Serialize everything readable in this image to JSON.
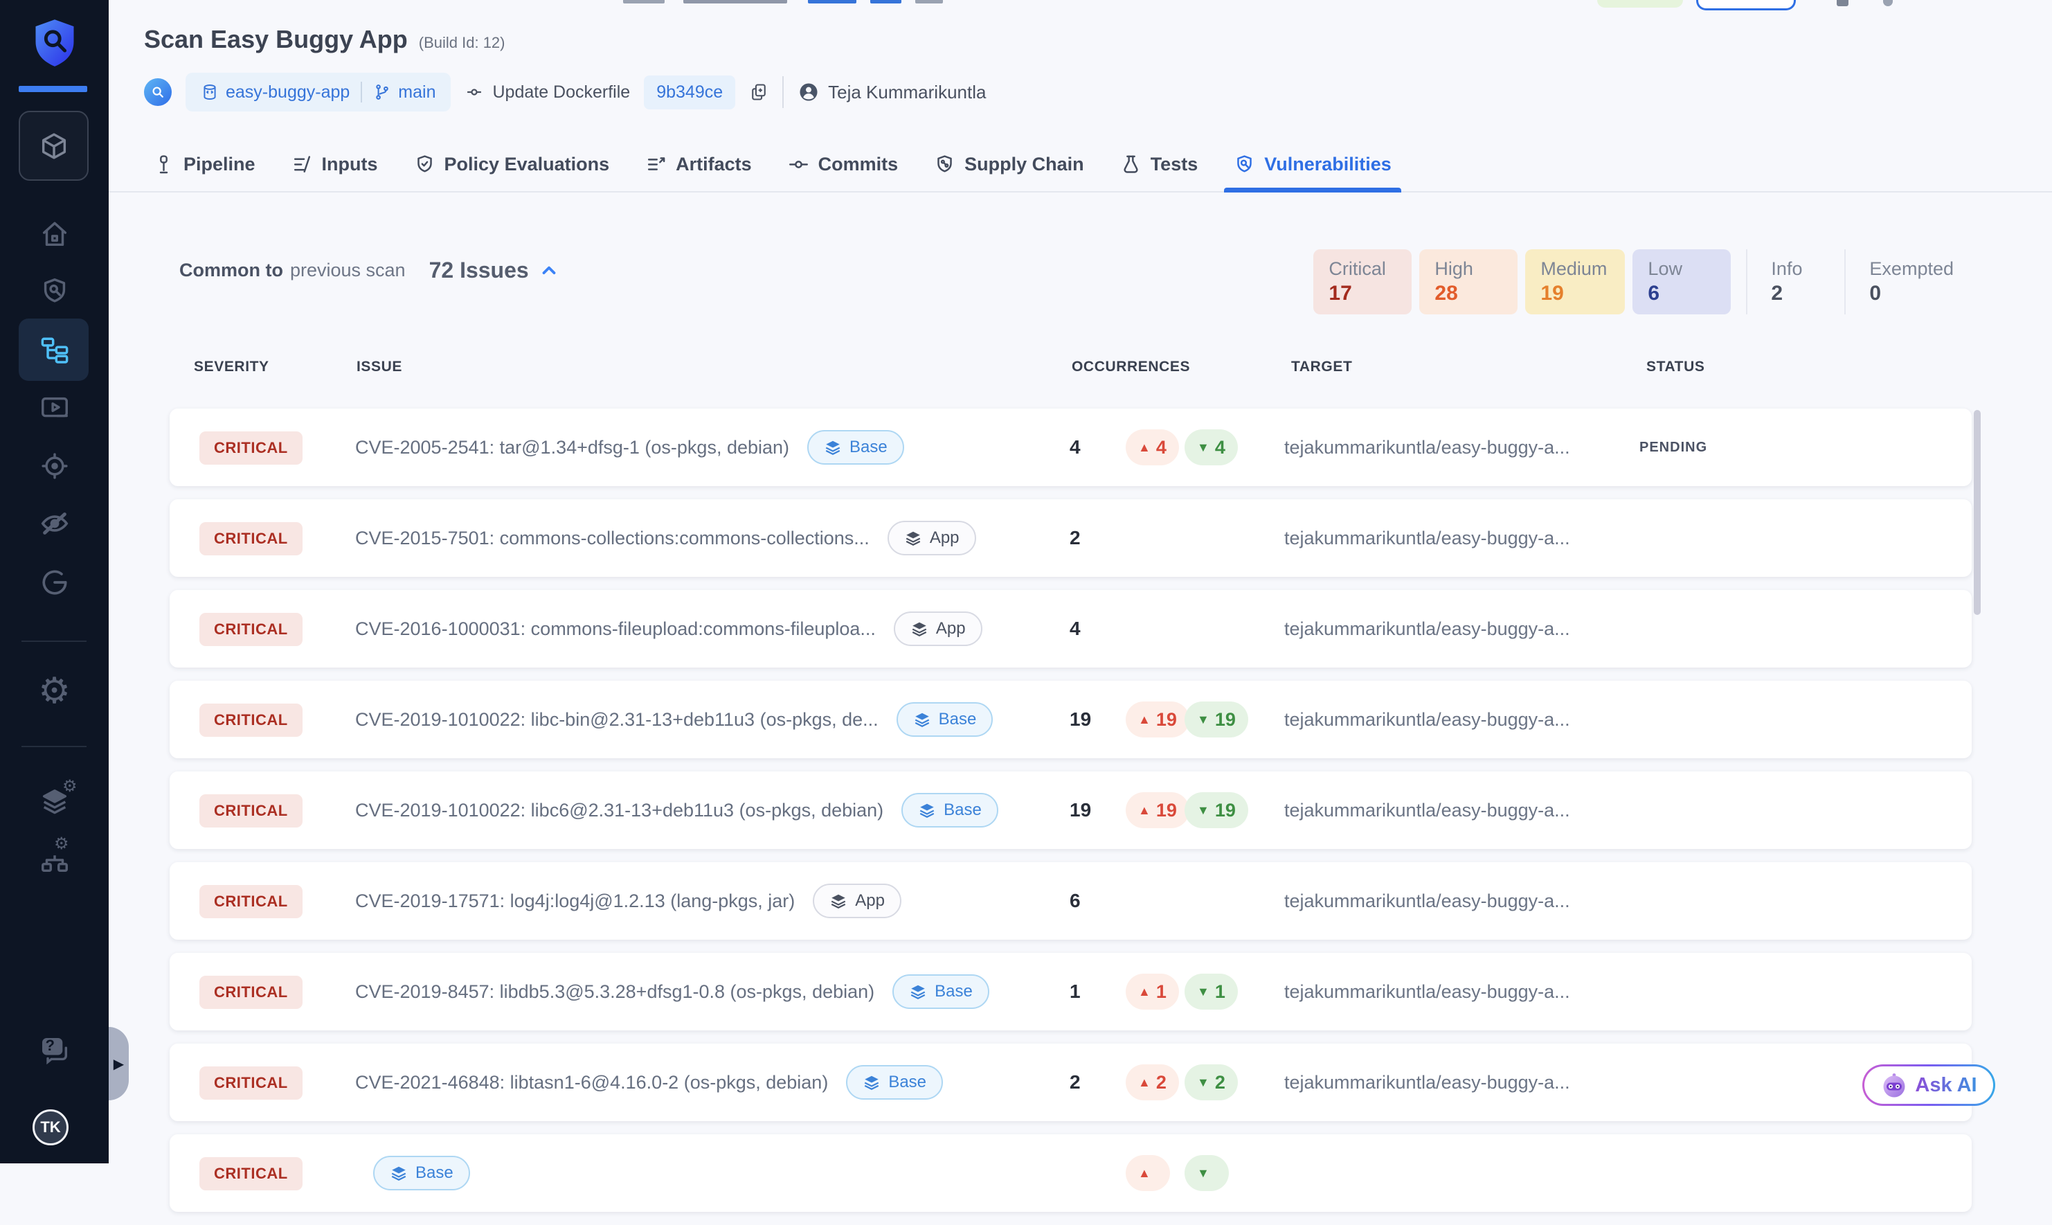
{
  "header": {
    "title": "Scan Easy Buggy App",
    "build_id": "(Build Id: 12)",
    "repo_name": "easy-buggy-app",
    "branch_name": "main",
    "commit_message": "Update Dockerfile",
    "commit_sha": "9b349ce",
    "author_name": "Teja Kummarikuntla"
  },
  "tabs": [
    {
      "label": "Pipeline",
      "icon": "pipeline-icon",
      "active": false
    },
    {
      "label": "Inputs",
      "icon": "inputs-icon",
      "active": false
    },
    {
      "label": "Policy Evaluations",
      "icon": "policy-evaluations-icon",
      "active": false
    },
    {
      "label": "Artifacts",
      "icon": "artifacts-icon",
      "active": false
    },
    {
      "label": "Commits",
      "icon": "commits-icon",
      "active": false
    },
    {
      "label": "Supply Chain",
      "icon": "supply-chain-icon",
      "active": false
    },
    {
      "label": "Tests",
      "icon": "tests-icon",
      "active": false
    },
    {
      "label": "Vulnerabilities",
      "icon": "vulnerabilities-icon",
      "active": true
    }
  ],
  "summary": {
    "common_label": "Common to",
    "scan_label": "previous scan",
    "issues_count": "72 Issues"
  },
  "severity_filters": [
    {
      "label": "Critical",
      "count": "17",
      "bg": "#f6e4e1",
      "count_color": "#a32b1e",
      "style": "filled"
    },
    {
      "label": "High",
      "count": "28",
      "bg": "#fbe9dd",
      "count_color": "#e25c2b",
      "style": "filled"
    },
    {
      "label": "Medium",
      "count": "19",
      "bg": "#f9edc4",
      "count_color": "#e5802c",
      "style": "filled"
    },
    {
      "label": "Low",
      "count": "6",
      "bg": "#dcdff4",
      "count_color": "#2c3f8f",
      "style": "filled"
    },
    {
      "label": "Info",
      "count": "2",
      "bg": "transparent",
      "count_color": "#4a5160",
      "style": "plain"
    },
    {
      "label": "Exempted",
      "count": "0",
      "bg": "transparent",
      "count_color": "#4a5160",
      "style": "plain"
    }
  ],
  "table": {
    "headers": [
      "SEVERITY",
      "ISSUE",
      "OCCURRENCES",
      "TARGET",
      "STATUS"
    ],
    "rows": [
      {
        "severity": "CRITICAL",
        "issue": "CVE-2005-2541: tar@1.34+dfsg-1 (os-pkgs, debian)",
        "scope": "Base",
        "occurrences": "4",
        "has_delta": true,
        "up": "4",
        "down": "4",
        "target": "tejakummarikuntla/easy-buggy-a...",
        "status": "PENDING"
      },
      {
        "severity": "CRITICAL",
        "issue": "CVE-2015-7501: commons-collections:commons-collections...",
        "scope": "App",
        "occurrences": "2",
        "has_delta": false,
        "up": "",
        "down": "",
        "target": "tejakummarikuntla/easy-buggy-a...",
        "status": ""
      },
      {
        "severity": "CRITICAL",
        "issue": "CVE-2016-1000031: commons-fileupload:commons-fileuploa...",
        "scope": "App",
        "occurrences": "4",
        "has_delta": false,
        "up": "",
        "down": "",
        "target": "tejakummarikuntla/easy-buggy-a...",
        "status": ""
      },
      {
        "severity": "CRITICAL",
        "issue": "CVE-2019-1010022: libc-bin@2.31-13+deb11u3 (os-pkgs, de...",
        "scope": "Base",
        "occurrences": "19",
        "has_delta": true,
        "up": "19",
        "down": "19",
        "target": "tejakummarikuntla/easy-buggy-a...",
        "status": ""
      },
      {
        "severity": "CRITICAL",
        "issue": "CVE-2019-1010022: libc6@2.31-13+deb11u3 (os-pkgs, debian)",
        "scope": "Base",
        "occurrences": "19",
        "has_delta": true,
        "up": "19",
        "down": "19",
        "target": "tejakummarikuntla/easy-buggy-a...",
        "status": ""
      },
      {
        "severity": "CRITICAL",
        "issue": "CVE-2019-17571: log4j:log4j@1.2.13 (lang-pkgs, jar)",
        "scope": "App",
        "occurrences": "6",
        "has_delta": false,
        "up": "",
        "down": "",
        "target": "tejakummarikuntla/easy-buggy-a...",
        "status": ""
      },
      {
        "severity": "CRITICAL",
        "issue": "CVE-2019-8457: libdb5.3@5.3.28+dfsg1-0.8 (os-pkgs, debian)",
        "scope": "Base",
        "occurrences": "1",
        "has_delta": true,
        "up": "1",
        "down": "1",
        "target": "tejakummarikuntla/easy-buggy-a...",
        "status": ""
      },
      {
        "severity": "CRITICAL",
        "issue": "CVE-2021-46848: libtasn1-6@4.16.0-2 (os-pkgs, debian)",
        "scope": "Base",
        "occurrences": "2",
        "has_delta": true,
        "up": "2",
        "down": "2",
        "target": "tejakummarikuntla/easy-buggy-a...",
        "status": ""
      },
      {
        "severity": "CRITICAL",
        "issue": "",
        "scope": "Base",
        "occurrences": "",
        "has_delta": true,
        "up": "",
        "down": "",
        "target": "",
        "status": ""
      }
    ]
  },
  "ask_ai_label": "Ask AI",
  "user_initials": "TK",
  "colors": {
    "accent_blue": "#2f6fe4",
    "sidebar_bg": "#0d1524",
    "critical_badge_bg": "#f8e6e3",
    "critical_badge_text": "#ab2f23"
  }
}
